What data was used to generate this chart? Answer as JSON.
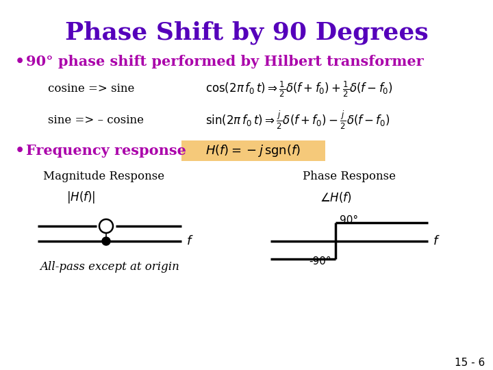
{
  "title": "Phase Shift by 90 Degrees",
  "title_color": "#5500BB",
  "title_fontsize": 26,
  "bullet1": "90° phase shift performed by Hilbert transformer",
  "bullet1_color": "#AA00AA",
  "bullet1_fontsize": 15,
  "cosine_label": "cosine => sine",
  "sine_label": "sine => – cosine",
  "cosine_formula": "$\\cos(2\\pi\\, f_0\\, t) \\Rightarrow \\frac{1}{2}\\delta(f+f_0)+\\frac{1}{2}\\delta(f-f_0)$",
  "sine_formula": "$\\sin(2\\pi\\, f_0\\, t) \\Rightarrow \\frac{j}{2}\\delta(f+f_0)-\\frac{j}{2}\\delta(f-f_0)$",
  "bullet2": "Frequency response",
  "bullet2_color": "#AA00AA",
  "freq_response": "$H(f) = -j\\,\\mathrm{sgn}(f)$",
  "mag_label": "Magnitude Response",
  "phase_label": "Phase Response",
  "mag_ylabel": "$|H(f)|$",
  "phase_ylabel": "$\\angle H(f)$",
  "f_label": "$f$",
  "allpass_text": "All-pass except at origin",
  "ninety_label": "90°",
  "neg_ninety_label": "-90°",
  "slide_number": "15 - 6",
  "bg_color": "#FFFFFF",
  "text_color": "#000000",
  "highlight_color": "#F5C97A"
}
